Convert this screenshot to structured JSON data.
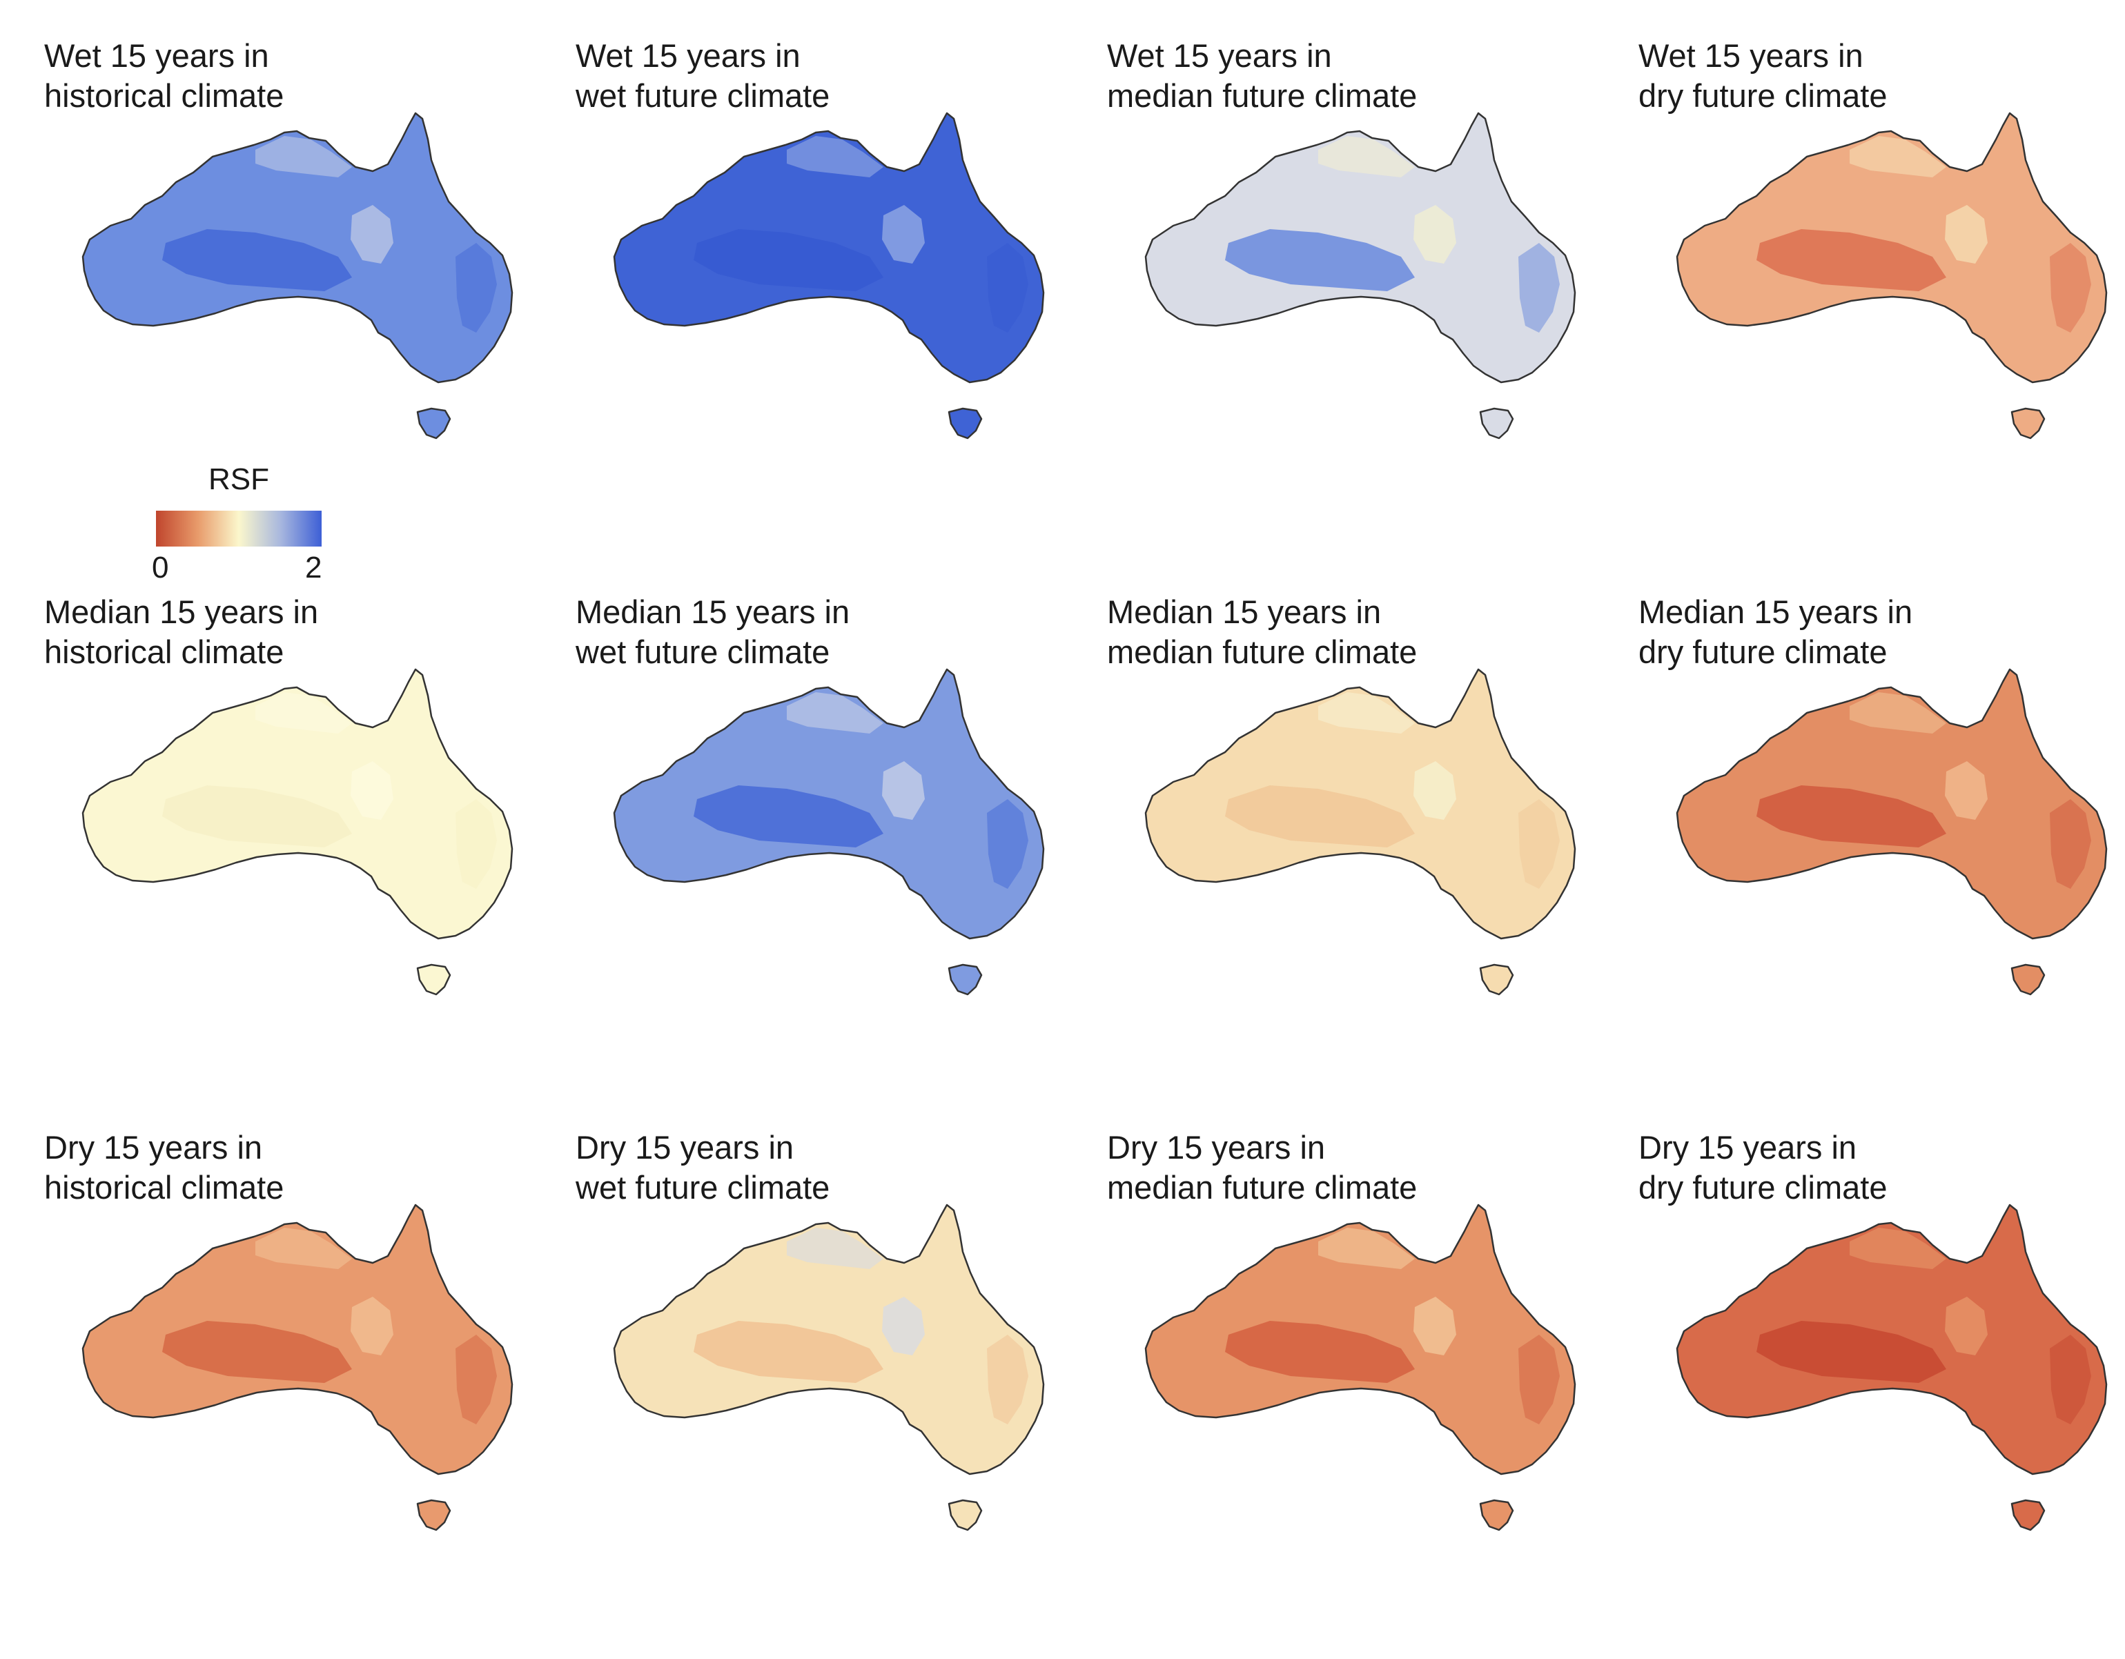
{
  "figure": {
    "panels": [
      {
        "title_line1": "Wet 15 years in",
        "title_line2": "historical climate",
        "fill": "#6d8ee0",
        "fill_dark": "#3f63d5",
        "fill_light": "#c4cde6"
      },
      {
        "title_line1": "Wet 15 years in",
        "title_line2": "wet future climate",
        "fill": "#3f63d5",
        "fill_dark": "#3558d0",
        "fill_light": "#9db2e6"
      },
      {
        "title_line1": "Wet 15 years in",
        "title_line2": "median future climate",
        "fill": "#d9dce6",
        "fill_dark": "#5a7fdc",
        "fill_light": "#f4f1cf"
      },
      {
        "title_line1": "Wet 15 years in",
        "title_line2": "dry future climate",
        "fill": "#eeac84",
        "fill_dark": "#d9684a",
        "fill_light": "#f7e2b8"
      },
      {
        "title_line1": "Median 15 years in",
        "title_line2": "historical climate",
        "fill": "#fbf7d2",
        "fill_dark": "#f6efc4",
        "fill_light": "#fdfbe0"
      },
      {
        "title_line1": "Median 15 years in",
        "title_line2": "wet future climate",
        "fill": "#7f9be0",
        "fill_dark": "#3f63d5",
        "fill_light": "#cfd6e8"
      },
      {
        "title_line1": "Median 15 years in",
        "title_line2": "median future climate",
        "fill": "#f6dcb0",
        "fill_dark": "#f0c596",
        "fill_light": "#f7f3d3"
      },
      {
        "title_line1": "Median 15 years in",
        "title_line2": "dry future climate",
        "fill": "#e38e64",
        "fill_dark": "#cd5238",
        "fill_light": "#f3c295"
      },
      {
        "title_line1": "Dry 15 years in",
        "title_line2": "historical climate",
        "fill": "#e89a6e",
        "fill_dark": "#d3603f",
        "fill_light": "#f3c599"
      },
      {
        "title_line1": "Dry 15 years in",
        "title_line2": "wet future climate",
        "fill": "#f6e2b8",
        "fill_dark": "#f0bd8f",
        "fill_light": "#d5dbe8"
      },
      {
        "title_line1": "Dry 15 years in",
        "title_line2": "median future climate",
        "fill": "#e69468",
        "fill_dark": "#d15a3b",
        "fill_light": "#f4cda0"
      },
      {
        "title_line1": "Dry 15 years in",
        "title_line2": "dry future climate",
        "fill": "#d86b4a",
        "fill_dark": "#c4432d",
        "fill_light": "#ea9a6c"
      }
    ]
  },
  "legend": {
    "title": "RSF",
    "min_label": "0",
    "max_label": "2",
    "colors": [
      "#c0452d",
      "#e89a6a",
      "#fbf7cc",
      "#a9b8de",
      "#3d5fd6"
    ]
  }
}
